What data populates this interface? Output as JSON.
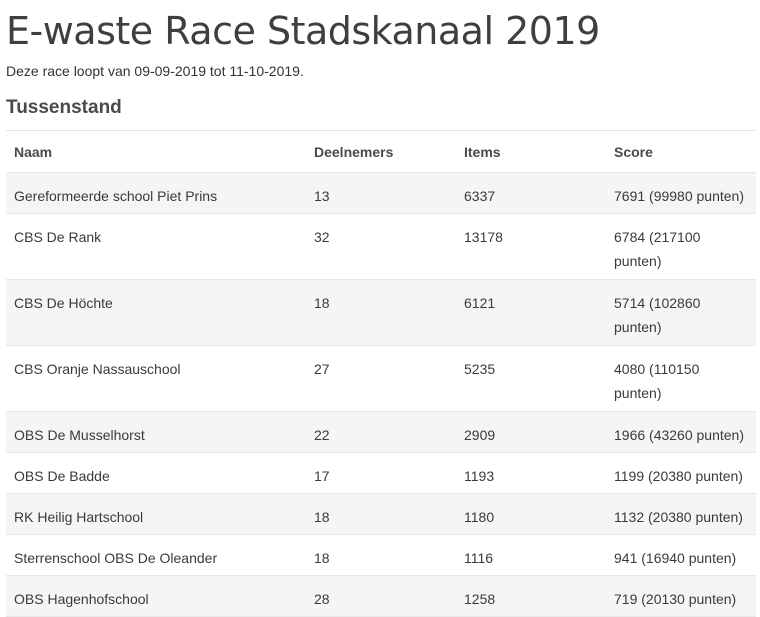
{
  "page": {
    "title": "E-waste Race Stadskanaal 2019",
    "subtitle": "Deze race loopt van 09-09-2019 tot 11-10-2019.",
    "section_title": "Tussenstand"
  },
  "table": {
    "headers": [
      "Naam",
      "Deelnemers",
      "Items",
      "Score"
    ],
    "rows": [
      {
        "naam": "Gereformeerde school Piet Prins",
        "deelnemers": "13",
        "items": "6337",
        "score": "7691 (99980 punten)"
      },
      {
        "naam": "CBS De Rank",
        "deelnemers": "32",
        "items": "13178",
        "score": "6784 (217100 punten)"
      },
      {
        "naam": "CBS De Höchte",
        "deelnemers": "18",
        "items": "6121",
        "score": "5714 (102860 punten)"
      },
      {
        "naam": "CBS Oranje Nassauschool",
        "deelnemers": "27",
        "items": "5235",
        "score": "4080 (110150 punten)"
      },
      {
        "naam": "OBS De Musselhorst",
        "deelnemers": "22",
        "items": "2909",
        "score": "1966 (43260 punten)"
      },
      {
        "naam": "OBS De Badde",
        "deelnemers": "17",
        "items": "1193",
        "score": "1199 (20380 punten)"
      },
      {
        "naam": "RK Heilig Hartschool",
        "deelnemers": "18",
        "items": "1180",
        "score": "1132 (20380 punten)"
      },
      {
        "naam": "Sterrenschool OBS De Oleander",
        "deelnemers": "18",
        "items": "1116",
        "score": "941 (16940 punten)"
      },
      {
        "naam": "OBS Hagenhofschool",
        "deelnemers": "28",
        "items": "1258",
        "score": "719 (20130 punten)"
      }
    ]
  }
}
